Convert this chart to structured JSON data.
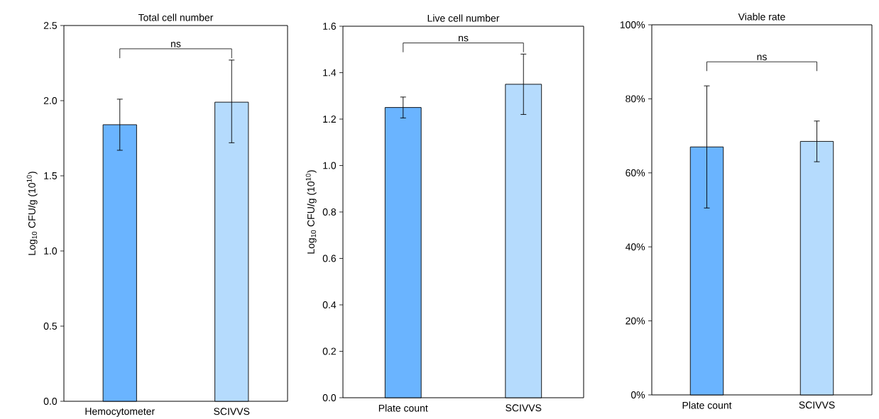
{
  "chart_data": [
    {
      "type": "bar",
      "title": "Total cell number",
      "ylabel": "Log$_{10}$ CFU/g (10$^{10}$)",
      "categories": [
        "Hemocytometer",
        "SCIVVS"
      ],
      "values": [
        1.84,
        1.99
      ],
      "errors": [
        [
          1.67,
          2.01
        ],
        [
          1.72,
          2.27
        ]
      ],
      "colors": [
        "#6ab4ff",
        "#b5dbfd"
      ],
      "ylim": [
        0,
        2.5
      ],
      "yticks": [
        {
          "value": 0,
          "label": "0.0"
        },
        0.5,
        {
          "value": 1,
          "label": "1.0"
        },
        1.5,
        {
          "value": 2,
          "label": "2.0"
        },
        2.5
      ],
      "grid": false,
      "annotations": [
        "ns"
      ]
    },
    {
      "type": "bar",
      "title": "Live cell number",
      "ylabel": "Log$_{10}$ CFU/g (10$^{10}$)",
      "categories": [
        "Plate count",
        "SCIVVS"
      ],
      "values": [
        1.25,
        1.35
      ],
      "errors": [
        [
          1.205,
          1.295
        ],
        [
          1.22,
          1.48
        ]
      ],
      "colors": [
        "#6ab4ff",
        "#b5dbfd"
      ],
      "ylim": [
        0,
        1.6
      ],
      "yticks": [
        {
          "value": 0,
          "label": "0.0"
        },
        0.2,
        0.4,
        0.6,
        0.8,
        {
          "value": 1,
          "label": "1.0"
        },
        1.2,
        1.4,
        1.6
      ],
      "grid": false,
      "annotations": [
        "ns"
      ]
    },
    {
      "type": "bar",
      "title": "Viable rate",
      "categories": [
        "Plate count",
        "SCIVVS"
      ],
      "values": [
        67,
        68.5
      ],
      "errors": [
        [
          50.5,
          83.5
        ],
        [
          63,
          74
        ]
      ],
      "colors": [
        "#6ab4ff",
        "#b5dbfd"
      ],
      "ylim": [
        0,
        100
      ],
      "yticks": [
        {
          "value": 0,
          "label": "0%"
        },
        {
          "value": 20,
          "label": "20%"
        },
        {
          "value": 40,
          "label": "40%"
        },
        {
          "value": 60,
          "label": "60%"
        },
        {
          "value": 80,
          "label": "80%"
        },
        {
          "value": 100,
          "label": "100%"
        }
      ],
      "grid": false,
      "annotations": [
        "ns"
      ]
    }
  ]
}
